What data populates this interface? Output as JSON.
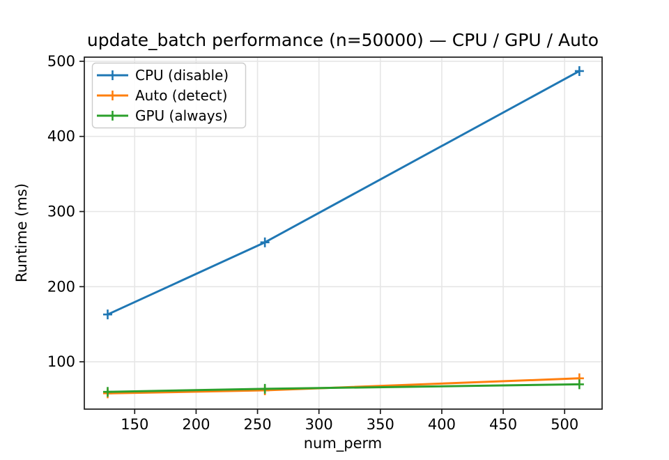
{
  "chart_data": {
    "type": "line",
    "title": "update_batch performance (n=50000) — CPU / GPU / Auto",
    "xlabel": "num_perm",
    "ylabel": "Runtime (ms)",
    "x_ticks": [
      150,
      200,
      250,
      300,
      350,
      400,
      450,
      500
    ],
    "y_ticks": [
      100,
      200,
      300,
      400,
      500
    ],
    "xlim": [
      109,
      530.5
    ],
    "ylim": [
      37,
      505.5
    ],
    "grid": true,
    "grid_color": "#e6e6e6",
    "spine_color": "#1a1a1a",
    "legend_position": "upper left",
    "marker": "+",
    "x": [
      128,
      256,
      512
    ],
    "series": [
      {
        "name": "CPU (disable)",
        "color": "#1f77b4",
        "values": [
          163,
          259,
          487
        ]
      },
      {
        "name": "Auto (detect)",
        "color": "#ff7f0e",
        "values": [
          58,
          62,
          78
        ]
      },
      {
        "name": "GPU (always)",
        "color": "#2ca02c",
        "values": [
          60,
          64,
          70
        ]
      }
    ]
  }
}
